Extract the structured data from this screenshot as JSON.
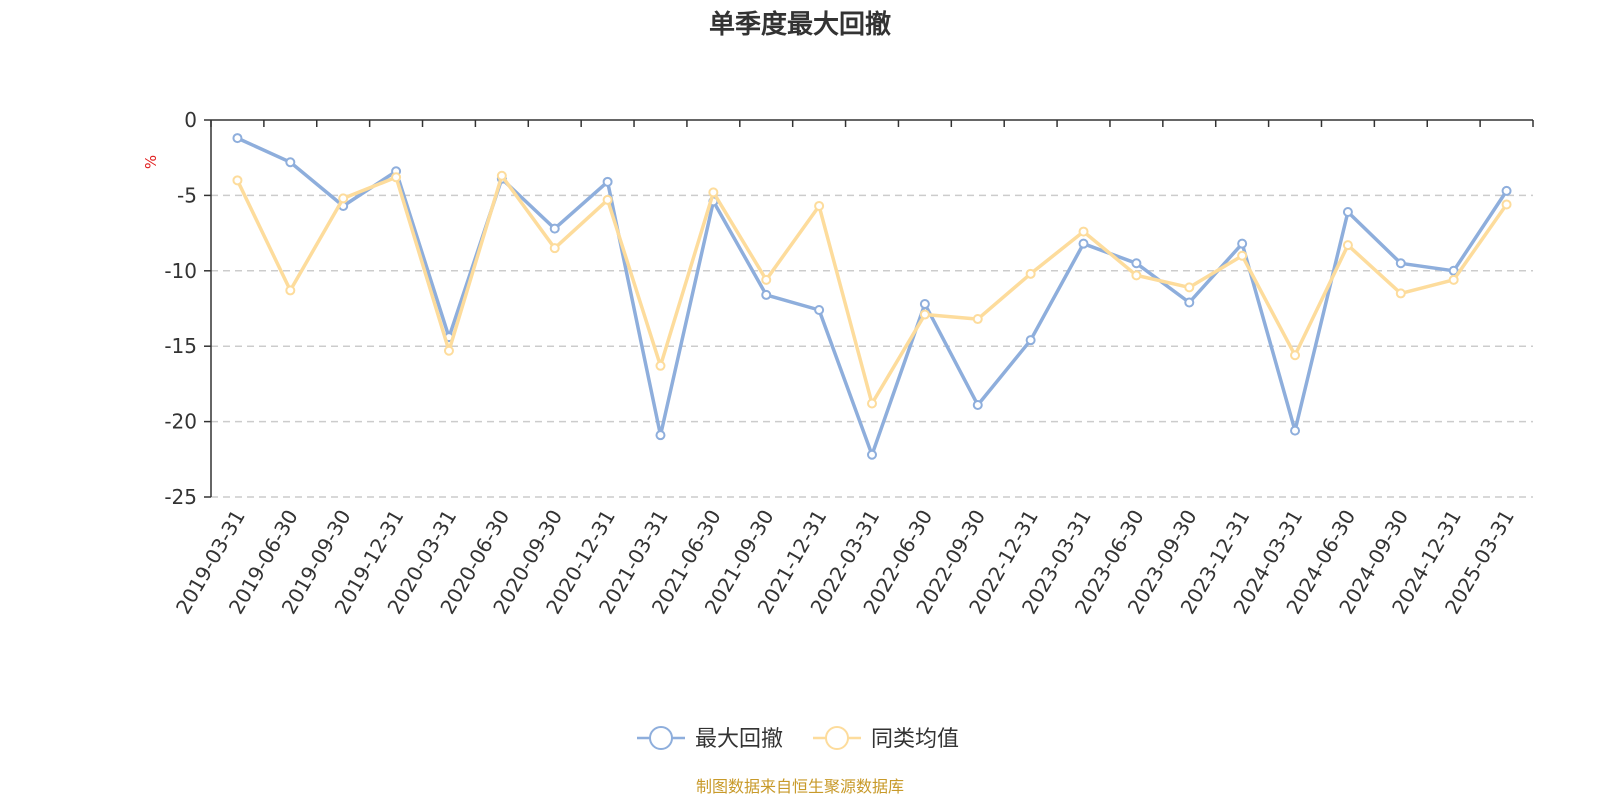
{
  "chart_data": {
    "type": "line",
    "title": "单季度最大回撤",
    "ylabel": "%",
    "ylim": [
      -25,
      0
    ],
    "yticks": [
      0,
      -5,
      -10,
      -15,
      -20,
      -25
    ],
    "grid": "horizontal-dashed",
    "legend_position": "bottom-center",
    "categories": [
      "2019-03-31",
      "2019-06-30",
      "2019-09-30",
      "2019-12-31",
      "2020-03-31",
      "2020-06-30",
      "2020-09-30",
      "2020-12-31",
      "2021-03-31",
      "2021-06-30",
      "2021-09-30",
      "2021-12-31",
      "2022-03-31",
      "2022-06-30",
      "2022-09-30",
      "2022-12-31",
      "2023-03-31",
      "2023-06-30",
      "2023-09-30",
      "2023-12-31",
      "2024-03-31",
      "2024-06-30",
      "2024-09-30",
      "2024-12-31",
      "2025-03-31"
    ],
    "series": [
      {
        "name": "最大回撤",
        "color": "#8eaedc",
        "values": [
          -1.2,
          -2.8,
          -5.7,
          -3.4,
          -14.4,
          -3.9,
          -7.2,
          -4.1,
          -20.9,
          -5.4,
          -11.6,
          -12.6,
          -22.2,
          -12.2,
          -18.9,
          -14.6,
          -8.2,
          -9.5,
          -12.1,
          -8.2,
          -20.6,
          -6.1,
          -9.5,
          -10.0,
          -4.7
        ]
      },
      {
        "name": "同类均值",
        "color": "#fddc9c",
        "values": [
          -4.0,
          -11.3,
          -5.2,
          -3.8,
          -15.3,
          -3.7,
          -8.5,
          -5.3,
          -16.3,
          -4.8,
          -10.6,
          -5.7,
          -18.8,
          -12.9,
          -13.2,
          -10.2,
          -7.4,
          -10.3,
          -11.1,
          -9.0,
          -15.6,
          -8.3,
          -11.5,
          -10.6,
          -5.6
        ]
      }
    ],
    "source": "制图数据来自恒生聚源数据库"
  }
}
